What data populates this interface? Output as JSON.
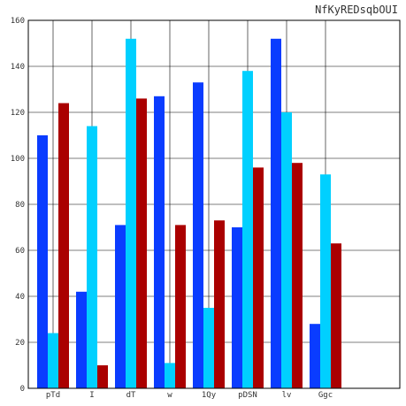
{
  "chart_data": {
    "type": "bar",
    "title": "NfKyREDsqbOUI",
    "xlabel": "",
    "ylabel": "",
    "categories": [
      "pTd",
      "I",
      "dT",
      "w",
      "1Qy",
      "pDSN",
      "lv",
      "Ggc"
    ],
    "ylim": [
      0,
      160
    ],
    "yticks": [
      0,
      20,
      40,
      60,
      80,
      100,
      120,
      140,
      160
    ],
    "grid": true,
    "legend": "none",
    "series": [
      {
        "color": "#0a3cff",
        "values": [
          110,
          42,
          71,
          127,
          133,
          70,
          152,
          28
        ]
      },
      {
        "color": "#00d0ff",
        "values": [
          24,
          114,
          152,
          11,
          35,
          138,
          120,
          93
        ]
      },
      {
        "color": "#aa0000",
        "values": [
          124,
          10,
          126,
          71,
          73,
          96,
          98,
          63
        ]
      }
    ]
  }
}
